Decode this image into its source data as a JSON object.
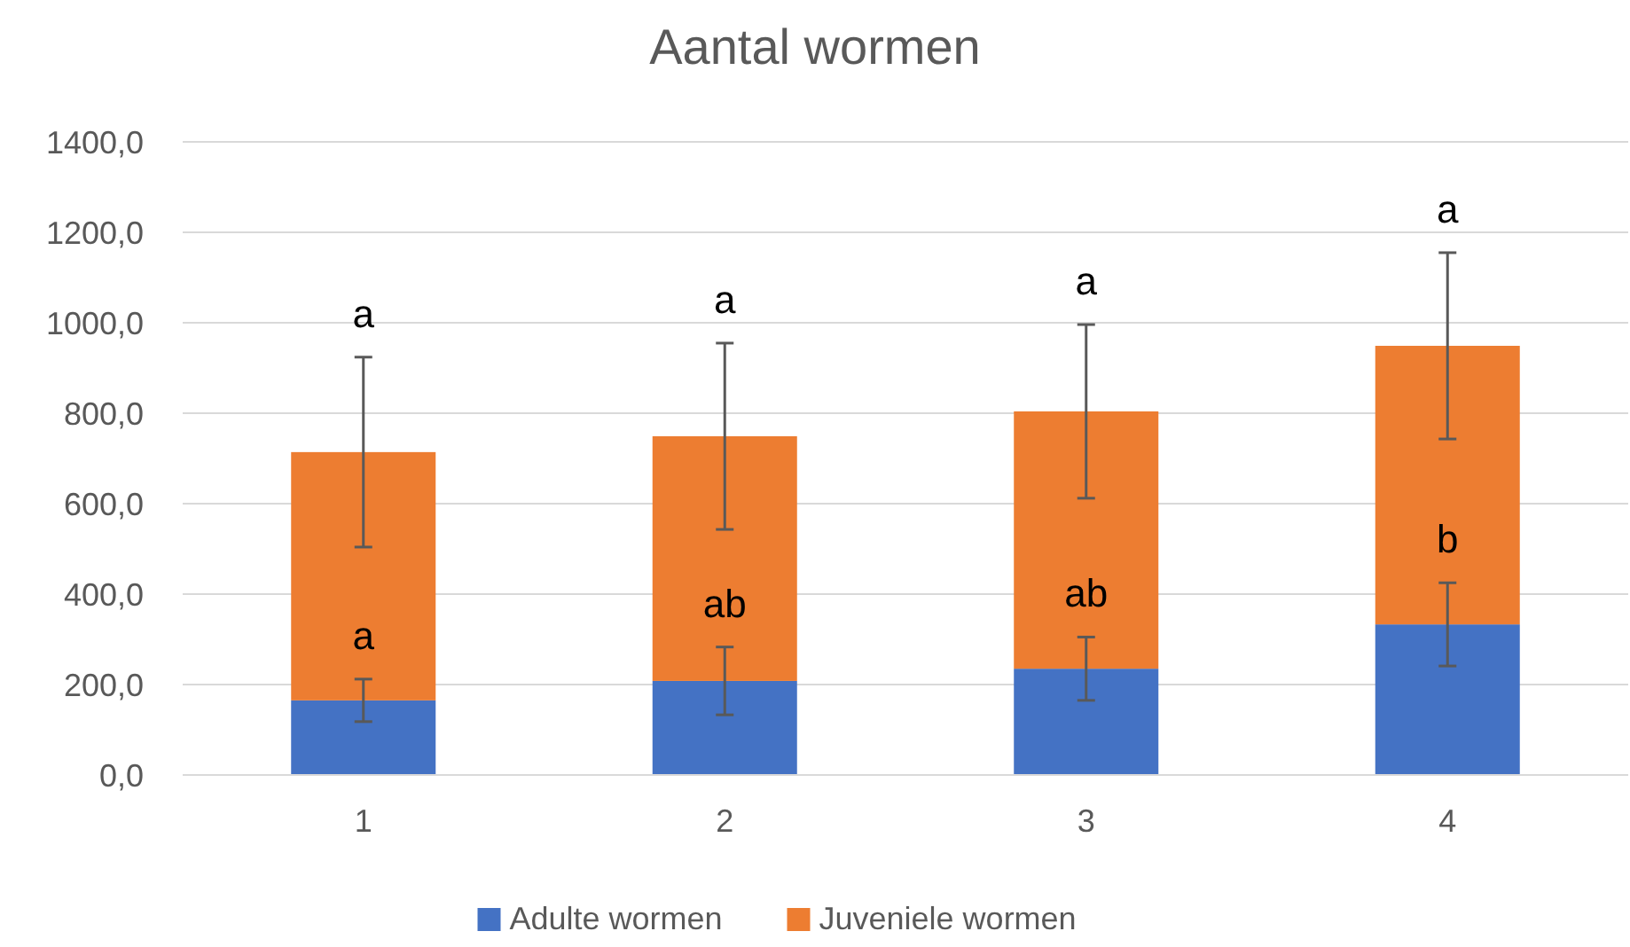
{
  "chart_data": {
    "type": "bar",
    "title": "Aantal wormen",
    "categories": [
      "1",
      "2",
      "3",
      "4"
    ],
    "stacked": true,
    "series": [
      {
        "name": "Adulte wormen",
        "color": "#4472c4",
        "values": [
          165,
          208,
          235,
          333
        ],
        "errors": [
          47,
          75,
          70,
          92
        ]
      },
      {
        "name": "Juveniele wormen",
        "color": "#ed7d31",
        "values": [
          549,
          541,
          569,
          616
        ],
        "errors": [
          210,
          206,
          192,
          206
        ]
      }
    ],
    "ylim": [
      0,
      1400
    ],
    "yticks": [
      {
        "value": 0,
        "label": "0,0"
      },
      {
        "value": 200,
        "label": "200,0"
      },
      {
        "value": 400,
        "label": "400,0"
      },
      {
        "value": 600,
        "label": "600,0"
      },
      {
        "value": 800,
        "label": "800,0"
      },
      {
        "value": 1000,
        "label": "1000,0"
      },
      {
        "value": 1200,
        "label": "1200,0"
      },
      {
        "value": 1400,
        "label": "1400,0"
      }
    ],
    "grid": "y",
    "legend": "bottom",
    "annotations": [
      {
        "text": "a",
        "x": "1",
        "y": 924
      },
      {
        "text": "a",
        "x": "1",
        "y": 212
      },
      {
        "text": "a",
        "x": "2",
        "y": 955
      },
      {
        "text": "ab",
        "x": "2",
        "y": 283
      },
      {
        "text": "a",
        "x": "3",
        "y": 996
      },
      {
        "text": "ab",
        "x": "3",
        "y": 305
      },
      {
        "text": "a",
        "x": "4",
        "y": 1155
      },
      {
        "text": "b",
        "x": "4",
        "y": 425
      }
    ]
  }
}
